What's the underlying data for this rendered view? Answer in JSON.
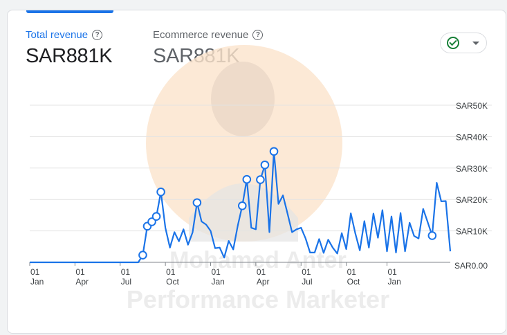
{
  "metrics": [
    {
      "label": "Total revenue",
      "value": "SAR881K",
      "help": "?"
    },
    {
      "label": "Ecommerce revenue",
      "value": "SAR881K",
      "help": "?"
    }
  ],
  "status_dropdown": {
    "icon": "check-circle-icon",
    "status": "ok"
  },
  "watermark": {
    "name": "Mohamed Anter",
    "title": "Performance Marketer"
  },
  "colors": {
    "accent": "#1a73e8",
    "line": "#1a73e8",
    "status_ok": "#188038"
  },
  "chart_data": {
    "type": "line",
    "ylim": [
      0,
      50000
    ],
    "y_ticks": [
      {
        "value": 0,
        "label": "SAR0.00"
      },
      {
        "value": 10000,
        "label": "SAR10K"
      },
      {
        "value": 20000,
        "label": "SAR20K"
      },
      {
        "value": 30000,
        "label": "SAR30K"
      },
      {
        "value": 40000,
        "label": "SAR40K"
      },
      {
        "value": 50000,
        "label": "SAR50K"
      }
    ],
    "x_ticks": [
      {
        "index": 0,
        "top": "01",
        "bottom": "Jan"
      },
      {
        "index": 10,
        "top": "01",
        "bottom": "Apr"
      },
      {
        "index": 20,
        "top": "01",
        "bottom": "Jul"
      },
      {
        "index": 30,
        "top": "01",
        "bottom": "Oct"
      },
      {
        "index": 40,
        "top": "01",
        "bottom": "Jan"
      },
      {
        "index": 50,
        "top": "01",
        "bottom": "Apr"
      },
      {
        "index": 60,
        "top": "01",
        "bottom": "Jul"
      },
      {
        "index": 70,
        "top": "01",
        "bottom": "Oct"
      },
      {
        "index": 79,
        "top": "01",
        "bottom": "Jan"
      }
    ],
    "values": [
      0,
      0,
      0,
      0,
      0,
      0,
      0,
      0,
      0,
      0,
      0,
      0,
      0,
      0,
      0,
      0,
      0,
      0,
      0,
      0,
      0,
      0,
      0,
      0,
      0,
      2300,
      11500,
      12900,
      14600,
      22400,
      11000,
      4700,
      9600,
      6700,
      10500,
      5600,
      9500,
      19000,
      13000,
      12000,
      10000,
      4500,
      4700,
      1500,
      6800,
      4100,
      11600,
      18000,
      26400,
      11000,
      10500,
      26300,
      31000,
      9600,
      35300,
      18600,
      21300,
      15600,
      9600,
      10500,
      11000,
      7600,
      3100,
      3100,
      7400,
      3000,
      7200,
      4700,
      2800,
      9300,
      4200,
      15600,
      9200,
      3800,
      13100,
      4700,
      15500,
      7800,
      16600,
      3500,
      14600,
      3100,
      15700,
      3500,
      12600,
      8400,
      7600,
      17000,
      12800,
      8500,
      25300,
      19400,
      19500,
      3500
    ],
    "highlighted_indices": [
      25,
      26,
      27,
      28,
      29,
      37,
      47,
      48,
      51,
      52,
      54,
      89
    ]
  }
}
